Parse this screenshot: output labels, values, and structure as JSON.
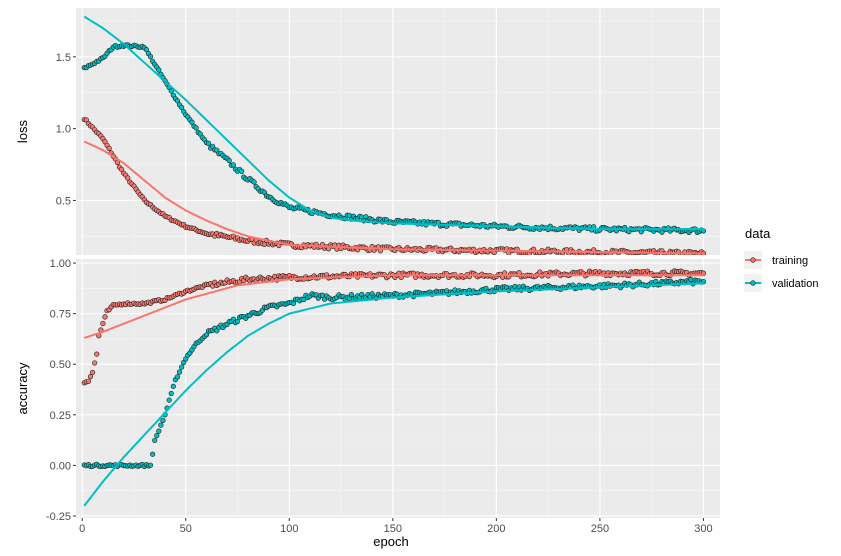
{
  "chart_data": {
    "type": "scatter",
    "style": "ggplot2 faceted scatter with smooth trend lines",
    "xlabel": "epoch",
    "xlim": [
      -3,
      308
    ],
    "xticks": [
      0,
      50,
      100,
      150,
      200,
      250,
      300
    ],
    "grid": true,
    "legend": {
      "title": "data",
      "placement": "right",
      "entries": [
        {
          "name": "training",
          "color": "#F8766D"
        },
        {
          "name": "validation",
          "color": "#00BFC4"
        }
      ]
    },
    "panels": [
      {
        "ylabel": "loss",
        "ylim": [
          0.12,
          1.84
        ],
        "yticks": [
          0.5,
          1.0,
          1.5
        ],
        "ytick_labels": [
          "0.5",
          "1.0",
          "1.5"
        ],
        "series": [
          {
            "name": "training",
            "points_sample": [
              [
                1,
                1.07
              ],
              [
                10,
                0.93
              ],
              [
                20,
                0.69
              ],
              [
                30,
                0.5
              ],
              [
                40,
                0.39
              ],
              [
                50,
                0.32
              ],
              [
                60,
                0.27
              ],
              [
                80,
                0.22
              ],
              [
                100,
                0.19
              ],
              [
                150,
                0.16
              ],
              [
                200,
                0.15
              ],
              [
                250,
                0.14
              ],
              [
                300,
                0.13
              ]
            ],
            "trend": [
              [
                1,
                0.91
              ],
              [
                10,
                0.85
              ],
              [
                20,
                0.76
              ],
              [
                30,
                0.64
              ],
              [
                40,
                0.52
              ],
              [
                50,
                0.43
              ],
              [
                60,
                0.36
              ],
              [
                70,
                0.3
              ],
              [
                80,
                0.25
              ],
              [
                100,
                0.19
              ],
              [
                150,
                0.16
              ],
              [
                200,
                0.15
              ],
              [
                250,
                0.14
              ],
              [
                300,
                0.13
              ]
            ]
          },
          {
            "name": "validation",
            "points_sample": [
              [
                1,
                1.42
              ],
              [
                10,
                1.49
              ],
              [
                15,
                1.57
              ],
              [
                20,
                1.58
              ],
              [
                30,
                1.57
              ],
              [
                35,
                1.45
              ],
              [
                40,
                1.33
              ],
              [
                50,
                1.1
              ],
              [
                60,
                0.9
              ],
              [
                70,
                0.78
              ],
              [
                80,
                0.65
              ],
              [
                90,
                0.53
              ],
              [
                100,
                0.45
              ],
              [
                120,
                0.4
              ],
              [
                150,
                0.35
              ],
              [
                200,
                0.32
              ],
              [
                250,
                0.3
              ],
              [
                300,
                0.29
              ]
            ],
            "trend": [
              [
                1,
                1.78
              ],
              [
                10,
                1.7
              ],
              [
                20,
                1.59
              ],
              [
                30,
                1.46
              ],
              [
                40,
                1.33
              ],
              [
                50,
                1.2
              ],
              [
                60,
                1.06
              ],
              [
                70,
                0.92
              ],
              [
                80,
                0.78
              ],
              [
                90,
                0.64
              ],
              [
                100,
                0.52
              ],
              [
                110,
                0.43
              ],
              [
                120,
                0.38
              ],
              [
                130,
                0.36
              ],
              [
                150,
                0.34
              ],
              [
                200,
                0.32
              ],
              [
                250,
                0.3
              ],
              [
                300,
                0.3
              ]
            ]
          }
        ]
      },
      {
        "ylabel": "accuracy",
        "ylim": [
          -0.26,
          1.02
        ],
        "yticks": [
          -0.25,
          0.0,
          0.25,
          0.5,
          0.75,
          1.0
        ],
        "ytick_labels": [
          "-0.25",
          "0.00",
          "0.25",
          "0.50",
          "0.75",
          "1.00"
        ],
        "series": [
          {
            "name": "training",
            "points_sample": [
              [
                1,
                0.41
              ],
              [
                3,
                0.42
              ],
              [
                5,
                0.46
              ],
              [
                7,
                0.55
              ],
              [
                8,
                0.64
              ],
              [
                10,
                0.7
              ],
              [
                12,
                0.76
              ],
              [
                15,
                0.79
              ],
              [
                20,
                0.8
              ],
              [
                30,
                0.8
              ],
              [
                40,
                0.82
              ],
              [
                50,
                0.86
              ],
              [
                60,
                0.89
              ],
              [
                80,
                0.92
              ],
              [
                100,
                0.93
              ],
              [
                150,
                0.94
              ],
              [
                200,
                0.94
              ],
              [
                250,
                0.95
              ],
              [
                300,
                0.95
              ]
            ],
            "trend": [
              [
                1,
                0.63
              ],
              [
                10,
                0.66
              ],
              [
                25,
                0.72
              ],
              [
                50,
                0.82
              ],
              [
                75,
                0.89
              ],
              [
                100,
                0.92
              ],
              [
                150,
                0.94
              ],
              [
                200,
                0.94
              ],
              [
                250,
                0.94
              ],
              [
                300,
                0.94
              ]
            ]
          },
          {
            "name": "validation",
            "points_sample": [
              [
                1,
                0.0
              ],
              [
                10,
                0.0
              ],
              [
                20,
                0.0
              ],
              [
                33,
                0.0
              ],
              [
                35,
                0.12
              ],
              [
                40,
                0.25
              ],
              [
                45,
                0.42
              ],
              [
                50,
                0.53
              ],
              [
                55,
                0.6
              ],
              [
                60,
                0.65
              ],
              [
                70,
                0.7
              ],
              [
                80,
                0.74
              ],
              [
                90,
                0.78
              ],
              [
                100,
                0.8
              ],
              [
                110,
                0.84
              ],
              [
                120,
                0.83
              ],
              [
                150,
                0.84
              ],
              [
                170,
                0.85
              ],
              [
                200,
                0.87
              ],
              [
                230,
                0.88
              ],
              [
                260,
                0.89
              ],
              [
                300,
                0.91
              ]
            ],
            "trend": [
              [
                1,
                -0.2
              ],
              [
                10,
                -0.08
              ],
              [
                20,
                0.04
              ],
              [
                30,
                0.15
              ],
              [
                40,
                0.26
              ],
              [
                50,
                0.37
              ],
              [
                60,
                0.47
              ],
              [
                70,
                0.56
              ],
              [
                80,
                0.64
              ],
              [
                90,
                0.7
              ],
              [
                100,
                0.75
              ],
              [
                120,
                0.8
              ],
              [
                150,
                0.83
              ],
              [
                200,
                0.86
              ],
              [
                250,
                0.88
              ],
              [
                300,
                0.9
              ]
            ]
          }
        ]
      }
    ]
  }
}
